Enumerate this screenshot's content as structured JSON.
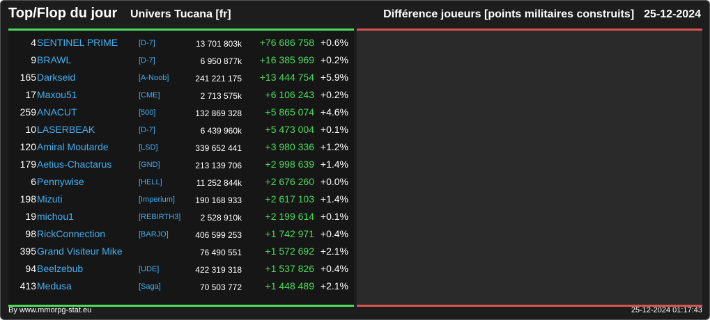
{
  "header": {
    "title": "Top/Flop du jour",
    "universe": "Univers Tucana [fr]",
    "metric": "Différence joueurs [points militaires construits]",
    "date": "25-12-2024"
  },
  "top_rows": [
    {
      "rank": "4",
      "name": "SENTINEL PRIME",
      "alliance": "[D-7]",
      "points": "13 701 803k",
      "delta": "+76 686 758",
      "pct": "+0.6%"
    },
    {
      "rank": "9",
      "name": "BRAWL",
      "alliance": "[D-7]",
      "points": "6 950 877k",
      "delta": "+16 385 969",
      "pct": "+0.2%"
    },
    {
      "rank": "165",
      "name": "Darkseid",
      "alliance": "[A-Noob]",
      "points": "241 221 175",
      "delta": "+13 444 754",
      "pct": "+5.9%"
    },
    {
      "rank": "17",
      "name": "Maxou51",
      "alliance": "[CME]",
      "points": "2 713 575k",
      "delta": "+6 106 243",
      "pct": "+0.2%"
    },
    {
      "rank": "259",
      "name": "ANACUT",
      "alliance": "[500]",
      "points": "132 869 328",
      "delta": "+5 865 074",
      "pct": "+4.6%"
    },
    {
      "rank": "10",
      "name": "LASERBEAK",
      "alliance": "[D-7]",
      "points": "6 439 960k",
      "delta": "+5 473 004",
      "pct": "+0.1%"
    },
    {
      "rank": "120",
      "name": "Amiral Moutarde",
      "alliance": "[LSD]",
      "points": "339 652 441",
      "delta": "+3 980 336",
      "pct": "+1.2%"
    },
    {
      "rank": "179",
      "name": "Aetius-Chactarus",
      "alliance": "[GND]",
      "points": "213 139 706",
      "delta": "+2 998 639",
      "pct": "+1.4%"
    },
    {
      "rank": "6",
      "name": "Pennywise",
      "alliance": "[HELL]",
      "points": "11 252 844k",
      "delta": "+2 676 260",
      "pct": "+0.0%"
    },
    {
      "rank": "198",
      "name": "Mizuti",
      "alliance": "[Imperium]",
      "points": "190 168 933",
      "delta": "+2 617 103",
      "pct": "+1.4%"
    },
    {
      "rank": "19",
      "name": "michou1",
      "alliance": "[REBIRTH3]",
      "points": "2 528 910k",
      "delta": "+2 199 614",
      "pct": "+0.1%"
    },
    {
      "rank": "98",
      "name": "RickConnection",
      "alliance": "[BARJO]",
      "points": "406 599 253",
      "delta": "+1 742 971",
      "pct": "+0.4%"
    },
    {
      "rank": "395",
      "name": "Grand Visiteur Mike",
      "alliance": "",
      "points": "76 490 551",
      "delta": "+1 572 692",
      "pct": "+2.1%"
    },
    {
      "rank": "94",
      "name": "Beelzebub",
      "alliance": "[UDE]",
      "points": "422 319 318",
      "delta": "+1 537 826",
      "pct": "+0.4%"
    },
    {
      "rank": "413",
      "name": "Medusa",
      "alliance": "[Saga]",
      "points": "70 503 772",
      "delta": "+1 448 489",
      "pct": "+2.1%"
    }
  ],
  "flop_rows": [],
  "footer": {
    "credit": "By www.mmorpg-stat.eu",
    "timestamp": "25-12-2024 01:17:43"
  },
  "colors": {
    "background": "#1d1d1d",
    "top_accent": "#4cdc5c",
    "flop_accent": "#d9534f",
    "link": "#45aef0"
  }
}
